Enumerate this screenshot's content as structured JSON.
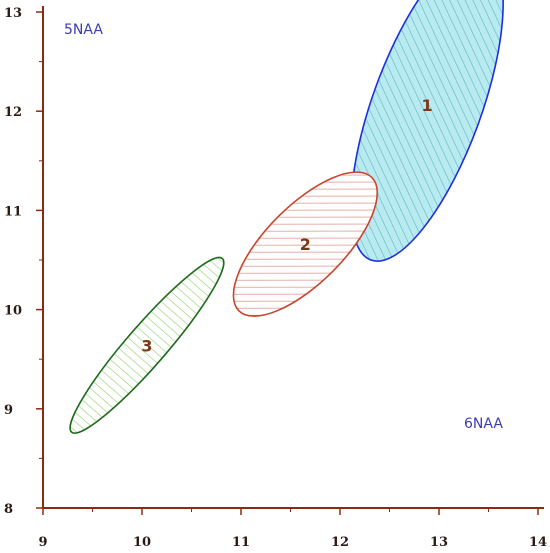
{
  "chart_data": {
    "type": "scatter",
    "title": "",
    "xlabel": "",
    "ylabel": "",
    "xlim": [
      9,
      14
    ],
    "ylim": [
      8,
      13
    ],
    "grid": false,
    "x_ticks": [
      "9",
      "10",
      "11",
      "12",
      "13",
      "14"
    ],
    "y_ticks": [
      "8",
      "9",
      "10",
      "11",
      "12",
      "13"
    ],
    "corner_labels": {
      "top_left": "5NAA",
      "bottom_right": "6NAA"
    },
    "series": [
      {
        "name": "1",
        "kind": "confidence-ellipse",
        "center": [
          12.88,
          12.06
        ],
        "semi_axes": [
          1.66,
          0.55
        ],
        "angle_deg": 70,
        "fill": "#b9eaef",
        "hatch": "#5ab7c8",
        "stroke": "#1c2ee0"
      },
      {
        "name": "2",
        "kind": "confidence-ellipse",
        "center": [
          11.65,
          10.66
        ],
        "semi_axes": [
          0.95,
          0.39
        ],
        "angle_deg": 45,
        "fill": "#ffffff",
        "hatch": "#d77a6e",
        "stroke": "#c8442c"
      },
      {
        "name": "3",
        "kind": "confidence-ellipse",
        "center": [
          10.05,
          9.64
        ],
        "semi_axes": [
          1.16,
          0.2
        ],
        "angle_deg": 49,
        "fill": "#ffffff",
        "hatch": "#8fd06a",
        "stroke": "#1f6a1f"
      }
    ],
    "colors": {
      "axis": "#8b2a14",
      "tick_text": "#2a1a15",
      "corner_text": "#3c3cb4",
      "ellipse_label": "#7a3a1a"
    }
  }
}
